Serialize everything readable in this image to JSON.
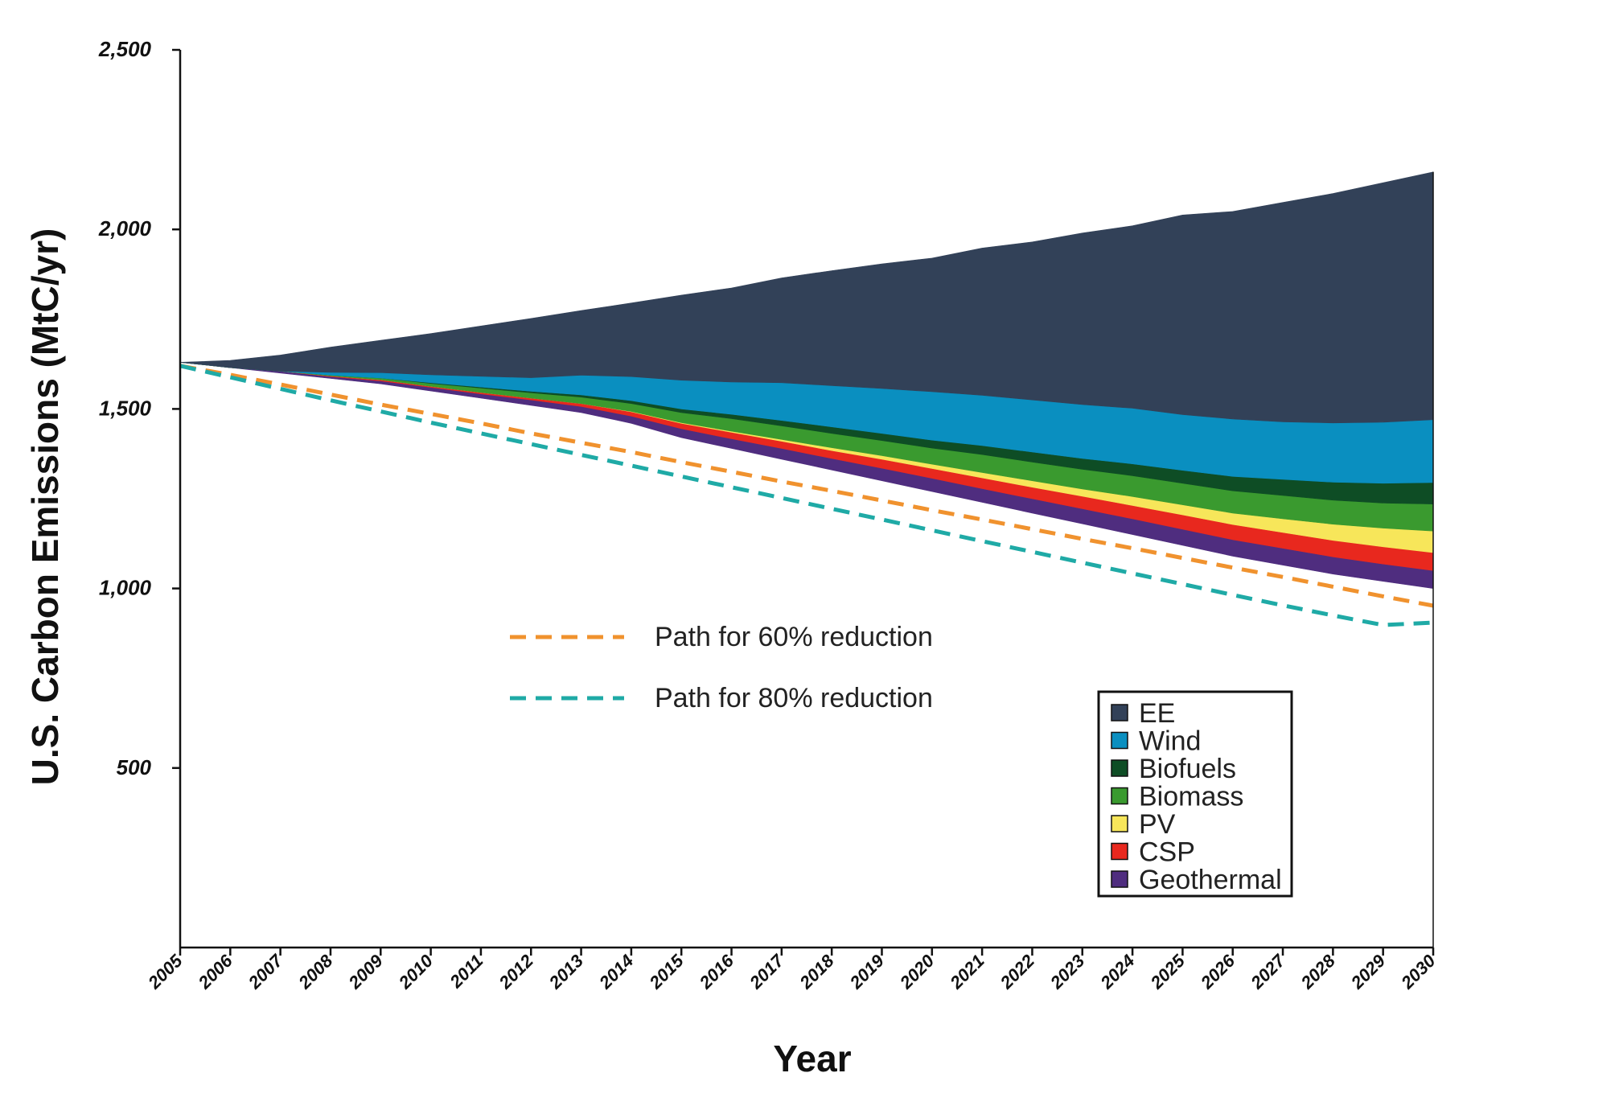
{
  "chart_data": {
    "type": "area",
    "title": "",
    "xlabel": "Year",
    "ylabel": "U.S. Carbon Emissions (MtC/yr)",
    "ylim": [
      0,
      2500
    ],
    "yticks": [
      500,
      1000,
      1500,
      2000,
      2500
    ],
    "ytick_labels": [
      "500",
      "1,000",
      "1,500",
      "2,000",
      "2,500"
    ],
    "x": [
      2005,
      2006,
      2007,
      2008,
      2009,
      2010,
      2011,
      2012,
      2013,
      2014,
      2015,
      2016,
      2017,
      2018,
      2019,
      2020,
      2021,
      2022,
      2023,
      2024,
      2025,
      2026,
      2027,
      2028,
      2029,
      2030
    ],
    "x_labels": [
      "2005",
      "2006",
      "2007",
      "2008",
      "2009",
      "2010",
      "2011",
      "2012",
      "2013",
      "2014",
      "2015",
      "2016",
      "2017",
      "2018",
      "2019",
      "2020",
      "2021",
      "2022",
      "2023",
      "2024",
      "2025",
      "2026",
      "2027",
      "2028",
      "2029",
      "2030"
    ],
    "stack_base": [
      1630,
      1615,
      1600,
      1585,
      1570,
      1550,
      1530,
      1510,
      1490,
      1460,
      1420,
      1390,
      1360,
      1330,
      1300,
      1270,
      1240,
      1210,
      1180,
      1150,
      1120,
      1090,
      1065,
      1040,
      1020,
      1000
    ],
    "series": [
      {
        "name": "Geothermal",
        "color": "#4f2d7f",
        "values": [
          0,
          0,
          5,
          5,
          8,
          10,
          12,
          15,
          17,
          20,
          25,
          27,
          30,
          32,
          35,
          37,
          38,
          40,
          42,
          44,
          45,
          46,
          47,
          48,
          48,
          50
        ]
      },
      {
        "name": "CSP",
        "color": "#e8281e",
        "values": [
          0,
          0,
          0,
          2,
          3,
          3,
          4,
          5,
          8,
          12,
          15,
          18,
          20,
          22,
          25,
          27,
          30,
          32,
          35,
          37,
          40,
          42,
          44,
          46,
          48,
          50
        ]
      },
      {
        "name": "PV",
        "color": "#f7e65a",
        "values": [
          0,
          0,
          0,
          0,
          0,
          0,
          0,
          0,
          0,
          1,
          2,
          3,
          5,
          8,
          10,
          12,
          15,
          18,
          20,
          25,
          28,
          32,
          38,
          45,
          52,
          60
        ]
      },
      {
        "name": "Biomass",
        "color": "#3a9a2f",
        "values": [
          0,
          0,
          0,
          2,
          5,
          8,
          12,
          15,
          18,
          22,
          28,
          35,
          38,
          40,
          42,
          45,
          50,
          52,
          55,
          58,
          60,
          62,
          65,
          67,
          70,
          75
        ]
      },
      {
        "name": "Biofuels",
        "color": "#0e4d25",
        "values": [
          0,
          0,
          0,
          0,
          0,
          2,
          3,
          4,
          6,
          8,
          10,
          12,
          15,
          18,
          20,
          22,
          25,
          28,
          30,
          33,
          36,
          40,
          45,
          50,
          55,
          60
        ]
      },
      {
        "name": "Wind",
        "color": "#0a8fc0",
        "values": [
          0,
          0,
          0,
          8,
          15,
          22,
          30,
          38,
          55,
          67,
          80,
          90,
          105,
          115,
          125,
          135,
          140,
          145,
          150,
          155,
          155,
          160,
          160,
          165,
          170,
          175
        ]
      },
      {
        "name": "EE",
        "color": "#324158",
        "values": [
          0,
          20,
          45,
          70,
          90,
          115,
          140,
          165,
          180,
          205,
          237,
          262,
          292,
          320,
          347,
          372,
          410,
          440,
          478,
          508,
          556,
          578,
          611,
          639,
          667,
          690
        ]
      }
    ],
    "reference_paths": [
      {
        "name": "Path for 60% reduction",
        "color": "#f0922e",
        "values": [
          1620,
          1595,
          1568,
          1540,
          1512,
          1486,
          1460,
          1432,
          1406,
          1380,
          1352,
          1325,
          1298,
          1272,
          1245,
          1218,
          1192,
          1165,
          1138,
          1112,
          1085,
          1058,
          1032,
          1005,
          978,
          952
        ]
      },
      {
        "name": "Path for 80% reduction",
        "color": "#1faaa6",
        "values": [
          1620,
          1588,
          1556,
          1524,
          1493,
          1462,
          1432,
          1402,
          1372,
          1342,
          1312,
          1282,
          1252,
          1222,
          1192,
          1162,
          1132,
          1102,
          1072,
          1042,
          1012,
          982,
          953,
          925,
          898,
          905
        ]
      }
    ],
    "legend": {
      "placement": "lower-right",
      "entries": [
        "EE",
        "Wind",
        "Biofuels",
        "Biomass",
        "PV",
        "CSP",
        "Geothermal"
      ]
    },
    "grid": false
  }
}
